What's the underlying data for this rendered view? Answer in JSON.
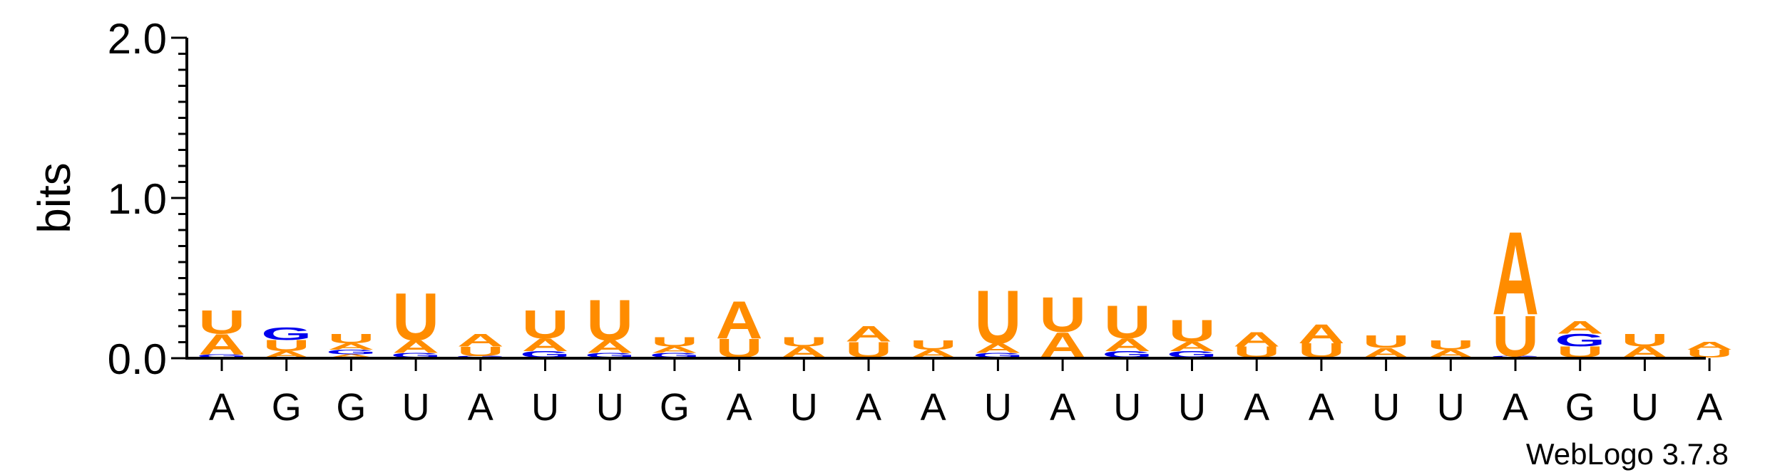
{
  "chart_data": {
    "type": "sequence-logo",
    "ylabel": "bits",
    "ylim": [
      0,
      2.0
    ],
    "yticks": [
      "0.0",
      "1.0",
      "2.0"
    ],
    "footer": "WebLogo 3.7.8",
    "colors": {
      "A": "#ff8c00",
      "U": "#ff8c00",
      "G": "#0000ee",
      "C": "#0000ee"
    },
    "positions": [
      {
        "label": "A",
        "stack": [
          {
            "l": "G",
            "h": 0.02
          },
          {
            "l": "A",
            "h": 0.13
          },
          {
            "l": "U",
            "h": 0.15
          }
        ]
      },
      {
        "label": "G",
        "stack": [
          {
            "l": "A",
            "h": 0.04
          },
          {
            "l": "U",
            "h": 0.07
          },
          {
            "l": "G",
            "h": 0.08
          }
        ]
      },
      {
        "label": "G",
        "stack": [
          {
            "l": "A",
            "h": 0.02
          },
          {
            "l": "G",
            "h": 0.03
          },
          {
            "l": "A",
            "h": 0.04
          },
          {
            "l": "U",
            "h": 0.06
          }
        ]
      },
      {
        "label": "U",
        "stack": [
          {
            "l": "G",
            "h": 0.03
          },
          {
            "l": "A",
            "h": 0.08
          },
          {
            "l": "U",
            "h": 0.3
          }
        ]
      },
      {
        "label": "A",
        "stack": [
          {
            "l": "G",
            "h": 0.01
          },
          {
            "l": "U",
            "h": 0.06
          },
          {
            "l": "A",
            "h": 0.08
          }
        ]
      },
      {
        "label": "U",
        "stack": [
          {
            "l": "G",
            "h": 0.04
          },
          {
            "l": "A",
            "h": 0.08
          },
          {
            "l": "U",
            "h": 0.18
          }
        ]
      },
      {
        "label": "U",
        "stack": [
          {
            "l": "G",
            "h": 0.03
          },
          {
            "l": "A",
            "h": 0.08
          },
          {
            "l": "U",
            "h": 0.26
          }
        ]
      },
      {
        "label": "G",
        "stack": [
          {
            "l": "G",
            "h": 0.03
          },
          {
            "l": "A",
            "h": 0.04
          },
          {
            "l": "U",
            "h": 0.06
          }
        ]
      },
      {
        "label": "A",
        "stack": [
          {
            "l": "U",
            "h": 0.12
          },
          {
            "l": "A",
            "h": 0.24
          }
        ]
      },
      {
        "label": "U",
        "stack": [
          {
            "l": "A",
            "h": 0.07
          },
          {
            "l": "U",
            "h": 0.06
          }
        ]
      },
      {
        "label": "A",
        "stack": [
          {
            "l": "U",
            "h": 0.1
          },
          {
            "l": "A",
            "h": 0.1
          }
        ]
      },
      {
        "label": "A",
        "stack": [
          {
            "l": "A",
            "h": 0.05
          },
          {
            "l": "U",
            "h": 0.06
          }
        ]
      },
      {
        "label": "U",
        "stack": [
          {
            "l": "G",
            "h": 0.03
          },
          {
            "l": "A",
            "h": 0.06
          },
          {
            "l": "U",
            "h": 0.34
          }
        ]
      },
      {
        "label": "A",
        "stack": [
          {
            "l": "A",
            "h": 0.16
          },
          {
            "l": "U",
            "h": 0.22
          }
        ]
      },
      {
        "label": "U",
        "stack": [
          {
            "l": "G",
            "h": 0.04
          },
          {
            "l": "A",
            "h": 0.08
          },
          {
            "l": "U",
            "h": 0.21
          }
        ]
      },
      {
        "label": "U",
        "stack": [
          {
            "l": "G",
            "h": 0.04
          },
          {
            "l": "A",
            "h": 0.06
          },
          {
            "l": "U",
            "h": 0.14
          }
        ]
      },
      {
        "label": "A",
        "stack": [
          {
            "l": "U",
            "h": 0.07
          },
          {
            "l": "A",
            "h": 0.09
          }
        ]
      },
      {
        "label": "A",
        "stack": [
          {
            "l": "U",
            "h": 0.09
          },
          {
            "l": "A",
            "h": 0.12
          }
        ]
      },
      {
        "label": "U",
        "stack": [
          {
            "l": "A",
            "h": 0.06
          },
          {
            "l": "U",
            "h": 0.08
          }
        ]
      },
      {
        "label": "U",
        "stack": [
          {
            "l": "A",
            "h": 0.05
          },
          {
            "l": "U",
            "h": 0.06
          }
        ]
      },
      {
        "label": "A",
        "stack": [
          {
            "l": "G",
            "h": 0.01
          },
          {
            "l": "U",
            "h": 0.26
          },
          {
            "l": "A",
            "h": 0.53
          }
        ]
      },
      {
        "label": "G",
        "stack": [
          {
            "l": "U",
            "h": 0.07
          },
          {
            "l": "G",
            "h": 0.08
          },
          {
            "l": "A",
            "h": 0.08
          }
        ]
      },
      {
        "label": "U",
        "stack": [
          {
            "l": "A",
            "h": 0.07
          },
          {
            "l": "U",
            "h": 0.08
          }
        ]
      },
      {
        "label": "A",
        "stack": [
          {
            "l": "U",
            "h": 0.05
          },
          {
            "l": "A",
            "h": 0.05
          }
        ]
      }
    ]
  }
}
